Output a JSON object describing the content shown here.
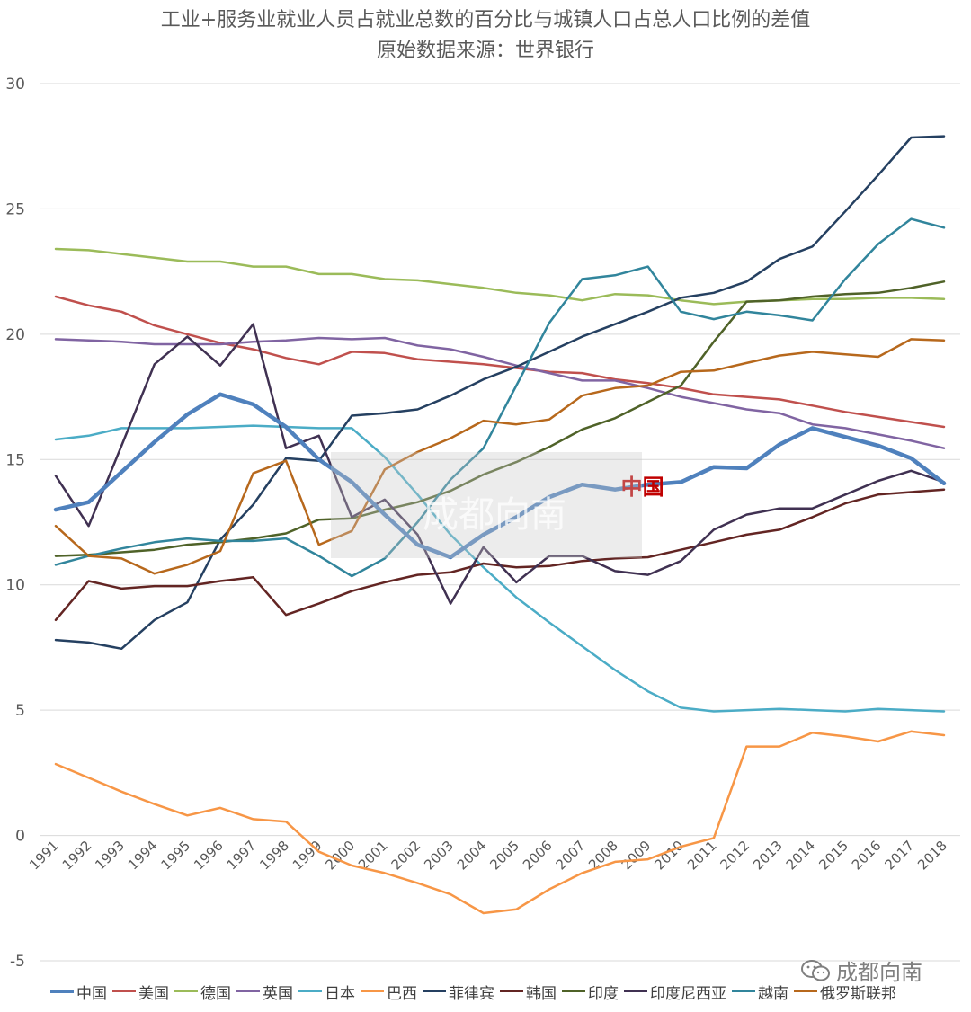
{
  "chart_data": {
    "type": "line",
    "title": "工业+服务业就业人员占就业总数的百分比与城镇人口占总人口比例的差值",
    "subtitle": "原始数据来源：世界银行",
    "xlabel": "",
    "ylabel": "",
    "ylim": [
      -5,
      30
    ],
    "yticks": [
      30,
      25,
      20,
      15,
      10,
      5,
      0,
      -5
    ],
    "grid": true,
    "legend_position": "bottom",
    "categories": [
      "1991",
      "1992",
      "1993",
      "1994",
      "1995",
      "1996",
      "1997",
      "1998",
      "1999",
      "2000",
      "2001",
      "2002",
      "2003",
      "2004",
      "2005",
      "2006",
      "2007",
      "2008",
      "2009",
      "2010",
      "2011",
      "2012",
      "2013",
      "2014",
      "2015",
      "2016",
      "2017",
      "2018"
    ],
    "series": [
      {
        "name": "中国",
        "color": "#4f81bd",
        "width": 4.5,
        "values": [
          13.0,
          13.3,
          14.5,
          15.7,
          16.8,
          17.6,
          17.2,
          16.3,
          15.0,
          14.1,
          12.8,
          11.6,
          11.1,
          12.0,
          12.7,
          13.5,
          14.0,
          13.8,
          14.0,
          14.1,
          14.7,
          14.65,
          15.6,
          16.25,
          15.9,
          15.55,
          15.05,
          14.05
        ]
      },
      {
        "name": "美国",
        "color": "#c0504d",
        "width": 2.5,
        "values": [
          21.5,
          21.15,
          20.9,
          20.35,
          20.0,
          19.65,
          19.4,
          19.05,
          18.8,
          19.3,
          19.25,
          19.0,
          18.9,
          18.8,
          18.65,
          18.5,
          18.45,
          18.2,
          18.05,
          17.85,
          17.6,
          17.5,
          17.4,
          17.15,
          16.9,
          16.7,
          16.5,
          16.3
        ]
      },
      {
        "name": "德国",
        "color": "#9bbb59",
        "width": 2.5,
        "values": [
          23.4,
          23.35,
          23.2,
          23.05,
          22.9,
          22.9,
          22.7,
          22.7,
          22.4,
          22.4,
          22.2,
          22.15,
          22.0,
          21.85,
          21.65,
          21.55,
          21.35,
          21.6,
          21.55,
          21.35,
          21.2,
          21.3,
          21.35,
          21.4,
          21.4,
          21.45,
          21.45,
          21.4
        ]
      },
      {
        "name": "英国",
        "color": "#8064a2",
        "width": 2.5,
        "values": [
          19.8,
          19.75,
          19.7,
          19.6,
          19.6,
          19.6,
          19.7,
          19.75,
          19.85,
          19.8,
          19.85,
          19.55,
          19.4,
          19.1,
          18.75,
          18.45,
          18.15,
          18.15,
          17.85,
          17.5,
          17.25,
          17.0,
          16.85,
          16.4,
          16.25,
          16.0,
          15.75,
          15.45
        ]
      },
      {
        "name": "日本",
        "color": "#4bacc6",
        "width": 2.5,
        "values": [
          15.8,
          15.95,
          16.25,
          16.25,
          16.25,
          16.3,
          16.35,
          16.3,
          16.25,
          16.25,
          15.1,
          13.6,
          12.0,
          10.7,
          9.5,
          8.5,
          7.55,
          6.6,
          5.75,
          5.1,
          4.95,
          5.0,
          5.05,
          5.0,
          4.95,
          5.05,
          5.0,
          4.95
        ]
      },
      {
        "name": "巴西",
        "color": "#f79646",
        "width": 2.5,
        "values": [
          2.85,
          2.3,
          1.75,
          1.25,
          0.8,
          1.1,
          0.65,
          0.55,
          -0.65,
          -1.2,
          -1.5,
          -1.9,
          -2.35,
          -3.1,
          -2.95,
          -2.15,
          -1.5,
          -1.05,
          -0.95,
          -0.45,
          -0.1,
          3.55,
          3.55,
          4.1,
          3.95,
          3.75,
          4.15,
          4.0
        ]
      },
      {
        "name": "菲律宾",
        "color": "#254061",
        "width": 2.5,
        "values": [
          7.8,
          7.7,
          7.45,
          8.6,
          9.3,
          11.8,
          13.2,
          15.05,
          14.95,
          16.75,
          16.85,
          17.0,
          17.55,
          18.2,
          18.7,
          19.3,
          19.9,
          20.4,
          20.9,
          21.45,
          21.65,
          22.1,
          23.0,
          23.5,
          24.9,
          26.35,
          27.85,
          27.9
        ]
      },
      {
        "name": "韩国",
        "color": "#632523",
        "width": 2.5,
        "values": [
          8.6,
          10.15,
          9.85,
          9.95,
          9.95,
          10.15,
          10.3,
          8.8,
          9.25,
          9.75,
          10.1,
          10.4,
          10.5,
          10.85,
          10.7,
          10.75,
          10.95,
          11.05,
          11.1,
          11.4,
          11.7,
          12.0,
          12.2,
          12.7,
          13.25,
          13.6,
          13.7,
          13.8
        ]
      },
      {
        "name": "印度",
        "color": "#4f6228",
        "width": 2.5,
        "values": [
          11.15,
          11.2,
          11.3,
          11.4,
          11.6,
          11.7,
          11.85,
          12.05,
          12.6,
          12.65,
          13.0,
          13.3,
          13.75,
          14.4,
          14.9,
          15.5,
          16.2,
          16.65,
          17.3,
          17.95,
          19.7,
          21.3,
          21.35,
          21.5,
          21.6,
          21.65,
          21.85,
          22.1
        ]
      },
      {
        "name": "印度尼西亚",
        "color": "#403152",
        "width": 2.5,
        "values": [
          14.35,
          12.35,
          15.55,
          18.8,
          19.9,
          18.75,
          20.4,
          15.45,
          15.95,
          12.7,
          13.4,
          12.0,
          9.25,
          11.5,
          10.1,
          11.15,
          11.15,
          10.55,
          10.4,
          10.95,
          12.2,
          12.8,
          13.05,
          13.05,
          13.6,
          14.15,
          14.55,
          14.1
        ]
      },
      {
        "name": "越南",
        "color": "#31859c",
        "width": 2.5,
        "values": [
          10.8,
          11.15,
          11.45,
          11.7,
          11.85,
          11.75,
          11.75,
          11.85,
          11.15,
          10.35,
          11.05,
          12.5,
          14.2,
          15.45,
          17.95,
          20.45,
          22.2,
          22.35,
          22.7,
          20.9,
          20.6,
          20.9,
          20.75,
          20.55,
          22.2,
          23.6,
          24.6,
          24.25
        ]
      },
      {
        "name": "俄罗斯联邦",
        "color": "#b7681c",
        "width": 2.5,
        "values": [
          12.35,
          11.15,
          11.05,
          10.45,
          10.8,
          11.35,
          14.45,
          14.95,
          11.6,
          12.15,
          14.6,
          15.3,
          15.85,
          16.55,
          16.4,
          16.6,
          17.55,
          17.85,
          17.95,
          18.5,
          18.55,
          18.85,
          19.15,
          19.3,
          19.2,
          19.1,
          19.8,
          19.75
        ]
      }
    ],
    "annotations": [
      {
        "text": "中国",
        "year": "2009",
        "value": 13.9
      }
    ]
  },
  "watermark": {
    "text": "成都向南"
  },
  "brand": {
    "text": "成都向南",
    "icon": "wechat-icon"
  }
}
